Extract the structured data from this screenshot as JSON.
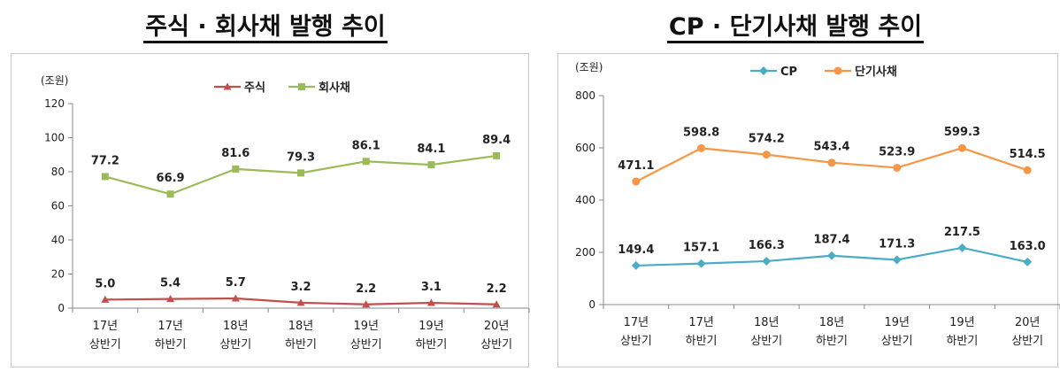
{
  "chart_data": [
    {
      "type": "line",
      "title": "주식 · 회사채 발행 추이",
      "unit": "(조원)",
      "categories": [
        [
          "17년",
          "상반기"
        ],
        [
          "17년",
          "하반기"
        ],
        [
          "18년",
          "상반기"
        ],
        [
          "18년",
          "하반기"
        ],
        [
          "19년",
          "상반기"
        ],
        [
          "19년",
          "하반기"
        ],
        [
          "20년",
          "상반기"
        ]
      ],
      "ylim": [
        0,
        120
      ],
      "yticks": [
        0,
        20,
        40,
        60,
        80,
        100,
        120
      ],
      "series": [
        {
          "name": "주식",
          "color": "#c0504d",
          "marker": "triangle",
          "values": [
            5.0,
            5.4,
            5.7,
            3.2,
            2.2,
            3.1,
            2.2
          ],
          "labels": [
            "5.0",
            "5.4",
            "5.7",
            "3.2",
            "2.2",
            "3.1",
            "2.2"
          ]
        },
        {
          "name": "회사채",
          "color": "#9bbb59",
          "marker": "square",
          "values": [
            77.2,
            66.9,
            81.6,
            79.3,
            86.1,
            84.1,
            89.4
          ],
          "labels": [
            "77.2",
            "66.9",
            "81.6",
            "79.3",
            "86.1",
            "84.1",
            "89.4"
          ]
        }
      ],
      "legend": "top"
    },
    {
      "type": "line",
      "title": "CP · 단기사채 발행 추이",
      "unit": "(조원)",
      "categories": [
        [
          "17년",
          "상반기"
        ],
        [
          "17년",
          "하반기"
        ],
        [
          "18년",
          "상반기"
        ],
        [
          "18년",
          "하반기"
        ],
        [
          "19년",
          "상반기"
        ],
        [
          "19년",
          "하반기"
        ],
        [
          "20년",
          "상반기"
        ]
      ],
      "ylim": [
        0,
        800
      ],
      "yticks": [
        0,
        200,
        400,
        600,
        800
      ],
      "series": [
        {
          "name": "CP",
          "color": "#4bacc6",
          "marker": "diamond",
          "values": [
            149.4,
            157.1,
            166.3,
            187.4,
            171.3,
            217.5,
            163.0
          ],
          "labels": [
            "149.4",
            "157.1",
            "166.3",
            "187.4",
            "171.3",
            "217.5",
            "163.0"
          ]
        },
        {
          "name": "단기사채",
          "color": "#f79646",
          "marker": "circle",
          "values": [
            471.1,
            598.8,
            574.2,
            543.4,
            523.9,
            599.3,
            514.5
          ],
          "labels": [
            "471.1",
            "598.8",
            "574.2",
            "543.4",
            "523.9",
            "599.3",
            "514.5"
          ]
        }
      ],
      "legend": "top"
    }
  ]
}
